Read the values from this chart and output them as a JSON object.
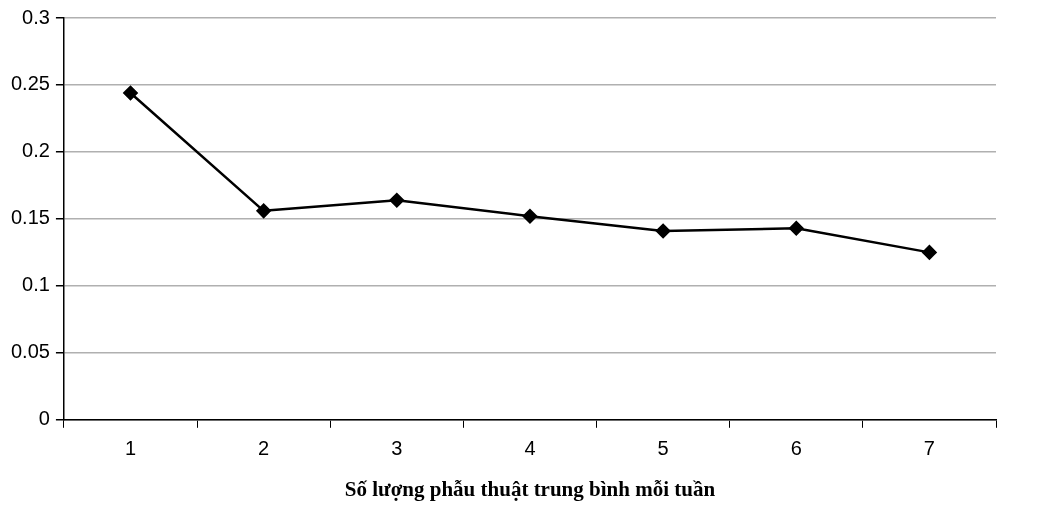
{
  "chart_data": {
    "type": "line",
    "xlabel": "Số lượng phẫu thuật trung bình mỗi tuần",
    "categories": [
      "1",
      "2",
      "3",
      "4",
      "5",
      "6",
      "7"
    ],
    "series": [
      {
        "color": "#000000",
        "values": [
          0.244,
          0.156,
          0.164,
          0.152,
          0.141,
          0.143,
          0.125
        ]
      }
    ],
    "ylim": [
      0,
      0.3
    ],
    "yticks": [
      0,
      0.05,
      0.1,
      0.15,
      0.2,
      0.25,
      0.3
    ],
    "grid": "y",
    "legend": false,
    "marker": "diamond",
    "line_style": "solid"
  }
}
